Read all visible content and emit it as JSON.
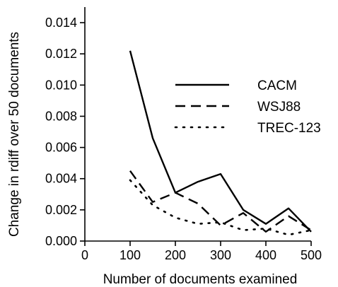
{
  "chart_data": {
    "type": "line",
    "xlabel": "Number of documents examined",
    "ylabel": "Change in rdiff over 50 documents",
    "xlim": [
      0,
      500
    ],
    "ylim": [
      0,
      0.015
    ],
    "x_ticks": [
      "0",
      "100",
      "200",
      "300",
      "400",
      "500"
    ],
    "y_ticks": [
      "0.000",
      "0.002",
      "0.004",
      "0.006",
      "0.008",
      "0.010",
      "0.012",
      "0.014"
    ],
    "grid": false,
    "legend_position": "right",
    "series": [
      {
        "name": "CACM",
        "style": "solid",
        "color": "#000000",
        "points": [
          [
            100,
            0.0122
          ],
          [
            150,
            0.0066
          ],
          [
            200,
            0.0031
          ],
          [
            250,
            0.0038
          ],
          [
            300,
            0.0043
          ],
          [
            350,
            0.002
          ],
          [
            400,
            0.0011
          ],
          [
            450,
            0.0021
          ],
          [
            500,
            0.0006
          ]
        ]
      },
      {
        "name": "WSJ88",
        "style": "dashed",
        "color": "#000000",
        "points": [
          [
            100,
            0.0045
          ],
          [
            150,
            0.0025
          ],
          [
            200,
            0.0031
          ],
          [
            250,
            0.0024
          ],
          [
            300,
            0.001
          ],
          [
            350,
            0.0018
          ],
          [
            400,
            0.0006
          ],
          [
            450,
            0.0016
          ],
          [
            500,
            0.0007
          ]
        ]
      },
      {
        "name": "TREC-123",
        "style": "dotted",
        "color": "#000000",
        "points": [
          [
            100,
            0.0039
          ],
          [
            150,
            0.0023
          ],
          [
            200,
            0.0015
          ],
          [
            250,
            0.0011
          ],
          [
            300,
            0.0012
          ],
          [
            350,
            0.0007
          ],
          [
            400,
            0.0008
          ],
          [
            450,
            0.0004
          ],
          [
            500,
            0.0007
          ]
        ]
      }
    ]
  }
}
